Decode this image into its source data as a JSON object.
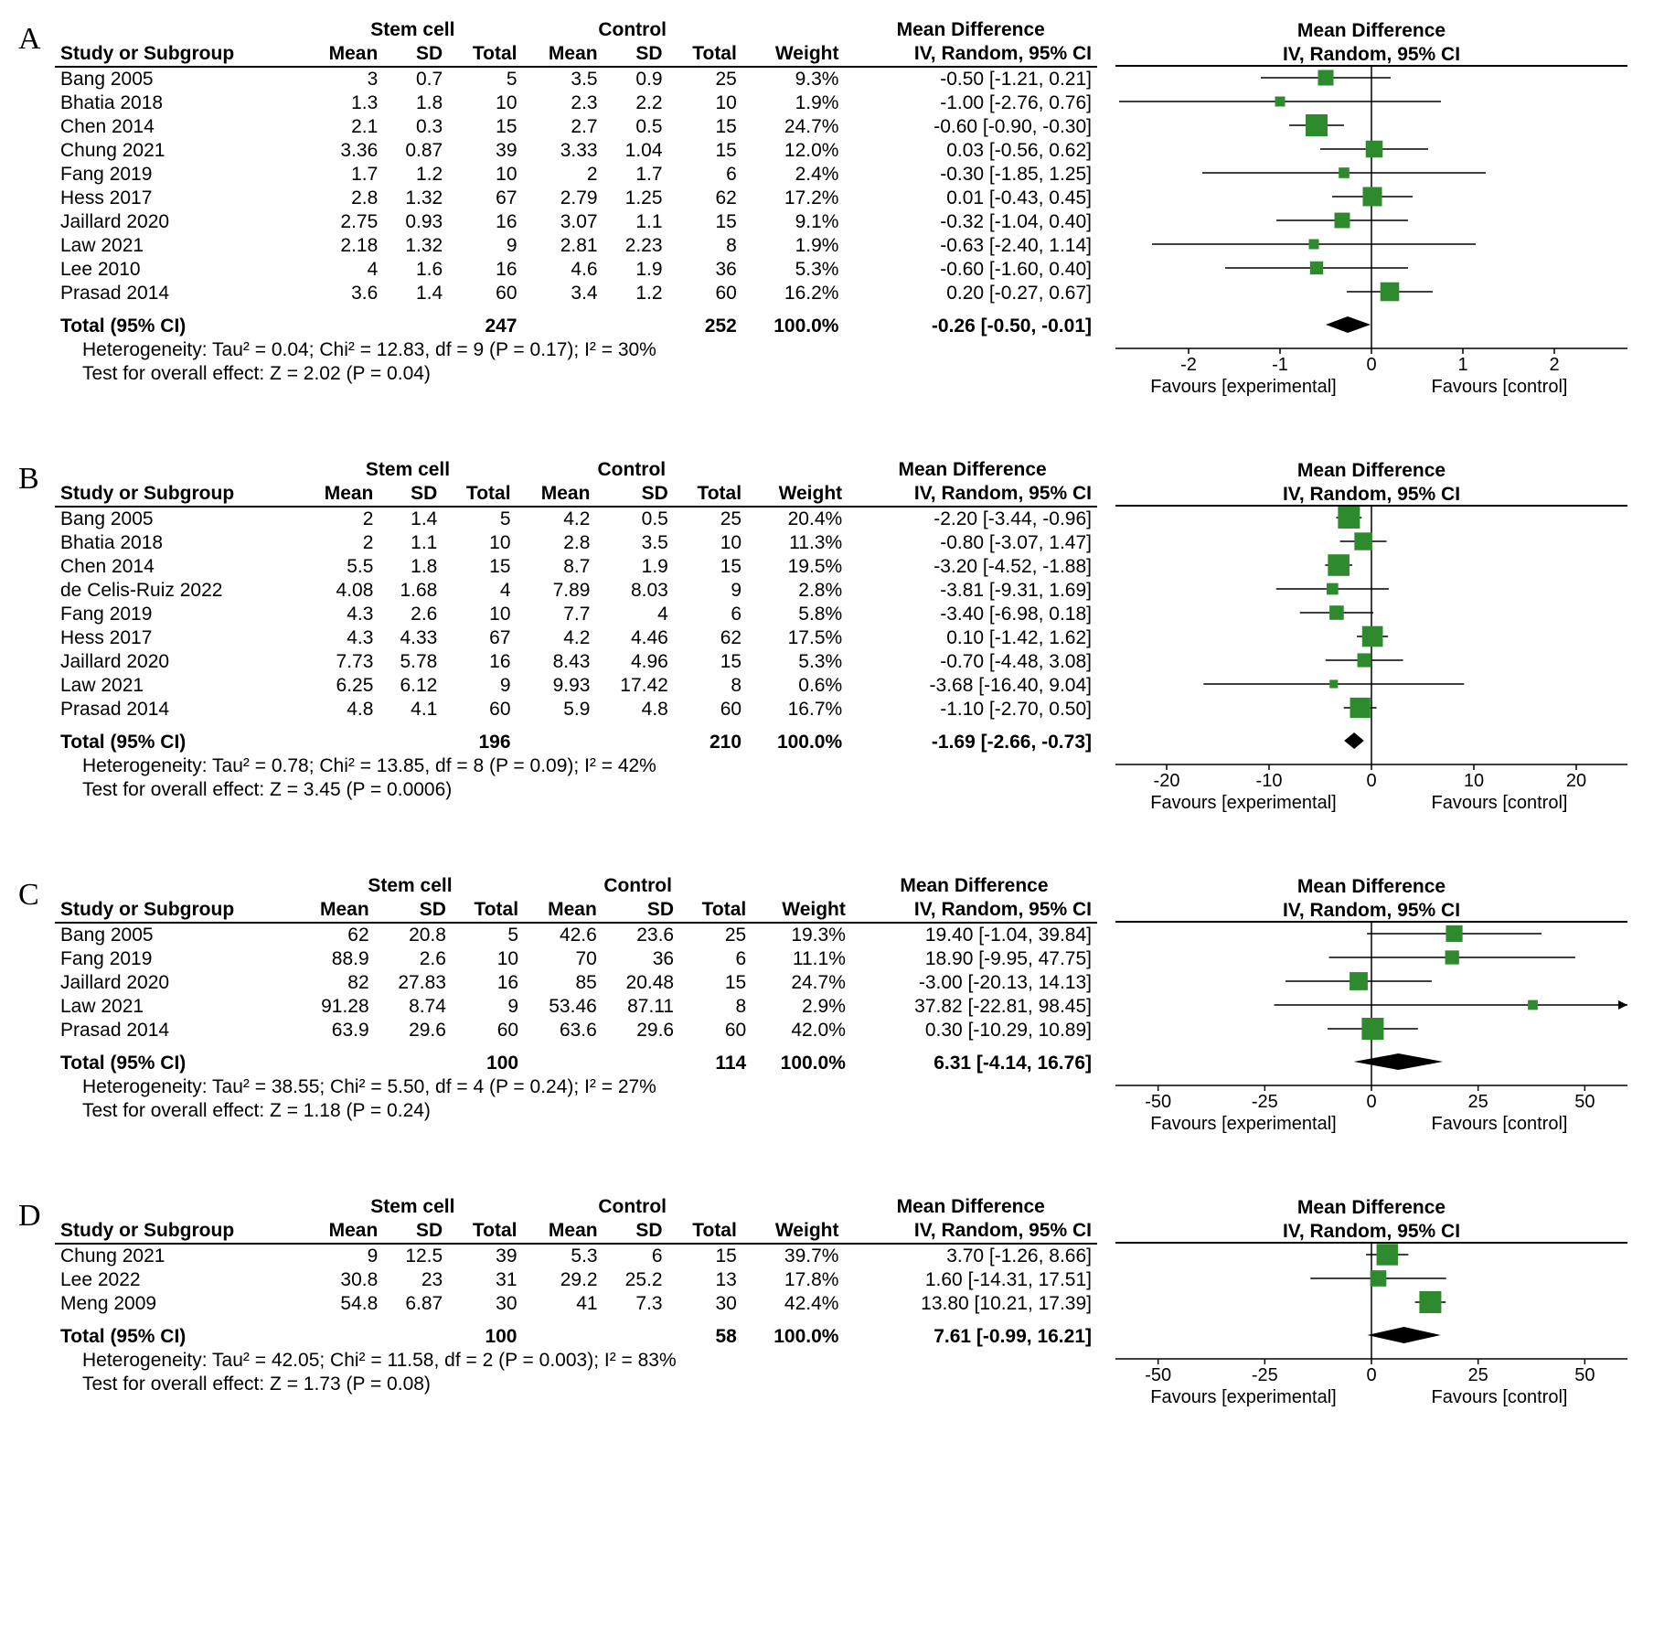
{
  "columns_group": [
    "",
    "Stem cell",
    "Control",
    "",
    "Mean Difference"
  ],
  "columns": [
    "Study or Subgroup",
    "Mean",
    "SD",
    "Total",
    "Mean",
    "SD",
    "Total",
    "Weight",
    "IV, Random, 95% CI"
  ],
  "plot_header1": "Mean Difference",
  "plot_header2": "IV, Random, 95% CI",
  "fav_left": "Favours [experimental]",
  "fav_right": "Favours [control]",
  "marker_color": "#2d8a2d",
  "panels": [
    {
      "letter": "A",
      "xmin": -2.8,
      "xmax": 2.8,
      "ticks": [
        -2,
        -1,
        0,
        1,
        2
      ],
      "rows": [
        {
          "s": "Bang 2005",
          "m1": "3",
          "sd1": "0.7",
          "n1": "5",
          "m2": "3.5",
          "sd2": "0.9",
          "n2": "25",
          "w": "9.3%",
          "md": "-0.50 [-1.21, 0.21]",
          "pt": -0.5,
          "lo": -1.21,
          "hi": 0.21,
          "wt": 9.3
        },
        {
          "s": "Bhatia 2018",
          "m1": "1.3",
          "sd1": "1.8",
          "n1": "10",
          "m2": "2.3",
          "sd2": "2.2",
          "n2": "10",
          "w": "1.9%",
          "md": "-1.00 [-2.76, 0.76]",
          "pt": -1.0,
          "lo": -2.76,
          "hi": 0.76,
          "wt": 1.9
        },
        {
          "s": "Chen 2014",
          "m1": "2.1",
          "sd1": "0.3",
          "n1": "15",
          "m2": "2.7",
          "sd2": "0.5",
          "n2": "15",
          "w": "24.7%",
          "md": "-0.60 [-0.90, -0.30]",
          "pt": -0.6,
          "lo": -0.9,
          "hi": -0.3,
          "wt": 24.7
        },
        {
          "s": "Chung 2021",
          "m1": "3.36",
          "sd1": "0.87",
          "n1": "39",
          "m2": "3.33",
          "sd2": "1.04",
          "n2": "15",
          "w": "12.0%",
          "md": "0.03 [-0.56, 0.62]",
          "pt": 0.03,
          "lo": -0.56,
          "hi": 0.62,
          "wt": 12.0
        },
        {
          "s": "Fang 2019",
          "m1": "1.7",
          "sd1": "1.2",
          "n1": "10",
          "m2": "2",
          "sd2": "1.7",
          "n2": "6",
          "w": "2.4%",
          "md": "-0.30 [-1.85, 1.25]",
          "pt": -0.3,
          "lo": -1.85,
          "hi": 1.25,
          "wt": 2.4
        },
        {
          "s": "Hess 2017",
          "m1": "2.8",
          "sd1": "1.32",
          "n1": "67",
          "m2": "2.79",
          "sd2": "1.25",
          "n2": "62",
          "w": "17.2%",
          "md": "0.01 [-0.43, 0.45]",
          "pt": 0.01,
          "lo": -0.43,
          "hi": 0.45,
          "wt": 17.2
        },
        {
          "s": "Jaillard 2020",
          "m1": "2.75",
          "sd1": "0.93",
          "n1": "16",
          "m2": "3.07",
          "sd2": "1.1",
          "n2": "15",
          "w": "9.1%",
          "md": "-0.32 [-1.04, 0.40]",
          "pt": -0.32,
          "lo": -1.04,
          "hi": 0.4,
          "wt": 9.1
        },
        {
          "s": "Law 2021",
          "m1": "2.18",
          "sd1": "1.32",
          "n1": "9",
          "m2": "2.81",
          "sd2": "2.23",
          "n2": "8",
          "w": "1.9%",
          "md": "-0.63 [-2.40, 1.14]",
          "pt": -0.63,
          "lo": -2.4,
          "hi": 1.14,
          "wt": 1.9
        },
        {
          "s": "Lee 2010",
          "m1": "4",
          "sd1": "1.6",
          "n1": "16",
          "m2": "4.6",
          "sd2": "1.9",
          "n2": "36",
          "w": "5.3%",
          "md": "-0.60 [-1.60, 0.40]",
          "pt": -0.6,
          "lo": -1.6,
          "hi": 0.4,
          "wt": 5.3
        },
        {
          "s": "Prasad 2014",
          "m1": "3.6",
          "sd1": "1.4",
          "n1": "60",
          "m2": "3.4",
          "sd2": "1.2",
          "n2": "60",
          "w": "16.2%",
          "md": "0.20 [-0.27, 0.67]",
          "pt": 0.2,
          "lo": -0.27,
          "hi": 0.67,
          "wt": 16.2
        }
      ],
      "total": {
        "n1": "247",
        "n2": "252",
        "w": "100.0%",
        "md": "-0.26 [-0.50, -0.01]",
        "pt": -0.26,
        "lo": -0.5,
        "hi": -0.01
      },
      "het": "Heterogeneity: Tau² = 0.04; Chi² = 12.83, df = 9 (P = 0.17); I² = 30%",
      "eff": "Test for overall effect: Z = 2.02 (P = 0.04)"
    },
    {
      "letter": "B",
      "xmin": -25,
      "xmax": 25,
      "ticks": [
        -20,
        -10,
        0,
        10,
        20
      ],
      "rows": [
        {
          "s": "Bang 2005",
          "m1": "2",
          "sd1": "1.4",
          "n1": "5",
          "m2": "4.2",
          "sd2": "0.5",
          "n2": "25",
          "w": "20.4%",
          "md": "-2.20 [-3.44, -0.96]",
          "pt": -2.2,
          "lo": -3.44,
          "hi": -0.96,
          "wt": 20.4
        },
        {
          "s": "Bhatia 2018",
          "m1": "2",
          "sd1": "1.1",
          "n1": "10",
          "m2": "2.8",
          "sd2": "3.5",
          "n2": "10",
          "w": "11.3%",
          "md": "-0.80 [-3.07, 1.47]",
          "pt": -0.8,
          "lo": -3.07,
          "hi": 1.47,
          "wt": 11.3
        },
        {
          "s": "Chen 2014",
          "m1": "5.5",
          "sd1": "1.8",
          "n1": "15",
          "m2": "8.7",
          "sd2": "1.9",
          "n2": "15",
          "w": "19.5%",
          "md": "-3.20 [-4.52, -1.88]",
          "pt": -3.2,
          "lo": -4.52,
          "hi": -1.88,
          "wt": 19.5
        },
        {
          "s": "de Celis-Ruiz 2022",
          "m1": "4.08",
          "sd1": "1.68",
          "n1": "4",
          "m2": "7.89",
          "sd2": "8.03",
          "n2": "9",
          "w": "2.8%",
          "md": "-3.81 [-9.31, 1.69]",
          "pt": -3.81,
          "lo": -9.31,
          "hi": 1.69,
          "wt": 2.8
        },
        {
          "s": "Fang 2019",
          "m1": "4.3",
          "sd1": "2.6",
          "n1": "10",
          "m2": "7.7",
          "sd2": "4",
          "n2": "6",
          "w": "5.8%",
          "md": "-3.40 [-6.98, 0.18]",
          "pt": -3.4,
          "lo": -6.98,
          "hi": 0.18,
          "wt": 5.8
        },
        {
          "s": "Hess 2017",
          "m1": "4.3",
          "sd1": "4.33",
          "n1": "67",
          "m2": "4.2",
          "sd2": "4.46",
          "n2": "62",
          "w": "17.5%",
          "md": "0.10 [-1.42, 1.62]",
          "pt": 0.1,
          "lo": -1.42,
          "hi": 1.62,
          "wt": 17.5
        },
        {
          "s": "Jaillard 2020",
          "m1": "7.73",
          "sd1": "5.78",
          "n1": "16",
          "m2": "8.43",
          "sd2": "4.96",
          "n2": "15",
          "w": "5.3%",
          "md": "-0.70 [-4.48, 3.08]",
          "pt": -0.7,
          "lo": -4.48,
          "hi": 3.08,
          "wt": 5.3
        },
        {
          "s": "Law 2021",
          "m1": "6.25",
          "sd1": "6.12",
          "n1": "9",
          "m2": "9.93",
          "sd2": "17.42",
          "n2": "8",
          "w": "0.6%",
          "md": "-3.68 [-16.40, 9.04]",
          "pt": -3.68,
          "lo": -16.4,
          "hi": 9.04,
          "wt": 0.6
        },
        {
          "s": "Prasad 2014",
          "m1": "4.8",
          "sd1": "4.1",
          "n1": "60",
          "m2": "5.9",
          "sd2": "4.8",
          "n2": "60",
          "w": "16.7%",
          "md": "-1.10 [-2.70, 0.50]",
          "pt": -1.1,
          "lo": -2.7,
          "hi": 0.5,
          "wt": 16.7
        }
      ],
      "total": {
        "n1": "196",
        "n2": "210",
        "w": "100.0%",
        "md": "-1.69 [-2.66, -0.73]",
        "pt": -1.69,
        "lo": -2.66,
        "hi": -0.73
      },
      "het": "Heterogeneity: Tau² = 0.78; Chi² = 13.85, df = 8 (P = 0.09); I² = 42%",
      "eff": "Test for overall effect: Z = 3.45 (P = 0.0006)"
    },
    {
      "letter": "C",
      "xmin": -60,
      "xmax": 60,
      "ticks": [
        -50,
        -25,
        0,
        25,
        50
      ],
      "rows": [
        {
          "s": "Bang 2005",
          "m1": "62",
          "sd1": "20.8",
          "n1": "5",
          "m2": "42.6",
          "sd2": "23.6",
          "n2": "25",
          "w": "19.3%",
          "md": "19.40 [-1.04, 39.84]",
          "pt": 19.4,
          "lo": -1.04,
          "hi": 39.84,
          "wt": 19.3
        },
        {
          "s": "Fang 2019",
          "m1": "88.9",
          "sd1": "2.6",
          "n1": "10",
          "m2": "70",
          "sd2": "36",
          "n2": "6",
          "w": "11.1%",
          "md": "18.90 [-9.95, 47.75]",
          "pt": 18.9,
          "lo": -9.95,
          "hi": 47.75,
          "wt": 11.1
        },
        {
          "s": "Jaillard 2020",
          "m1": "82",
          "sd1": "27.83",
          "n1": "16",
          "m2": "85",
          "sd2": "20.48",
          "n2": "15",
          "w": "24.7%",
          "md": "-3.00 [-20.13, 14.13]",
          "pt": -3.0,
          "lo": -20.13,
          "hi": 14.13,
          "wt": 24.7
        },
        {
          "s": "Law 2021",
          "m1": "91.28",
          "sd1": "8.74",
          "n1": "9",
          "m2": "53.46",
          "sd2": "87.11",
          "n2": "8",
          "w": "2.9%",
          "md": "37.82 [-22.81, 98.45]",
          "pt": 37.82,
          "lo": -22.81,
          "hi": 98.45,
          "wt": 2.9,
          "arrowR": true
        },
        {
          "s": "Prasad 2014",
          "m1": "63.9",
          "sd1": "29.6",
          "n1": "60",
          "m2": "63.6",
          "sd2": "29.6",
          "n2": "60",
          "w": "42.0%",
          "md": "0.30 [-10.29, 10.89]",
          "pt": 0.3,
          "lo": -10.29,
          "hi": 10.89,
          "wt": 42.0
        }
      ],
      "total": {
        "n1": "100",
        "n2": "114",
        "w": "100.0%",
        "md": "6.31 [-4.14, 16.76]",
        "pt": 6.31,
        "lo": -4.14,
        "hi": 16.76
      },
      "het": "Heterogeneity: Tau² = 38.55; Chi² = 5.50, df = 4 (P = 0.24); I² = 27%",
      "eff": "Test for overall effect: Z = 1.18 (P = 0.24)"
    },
    {
      "letter": "D",
      "xmin": -60,
      "xmax": 60,
      "ticks": [
        -50,
        -25,
        0,
        25,
        50
      ],
      "rows": [
        {
          "s": "Chung 2021",
          "m1": "9",
          "sd1": "12.5",
          "n1": "39",
          "m2": "5.3",
          "sd2": "6",
          "n2": "15",
          "w": "39.7%",
          "md": "3.70 [-1.26, 8.66]",
          "pt": 3.7,
          "lo": -1.26,
          "hi": 8.66,
          "wt": 39.7
        },
        {
          "s": "Lee 2022",
          "m1": "30.8",
          "sd1": "23",
          "n1": "31",
          "m2": "29.2",
          "sd2": "25.2",
          "n2": "13",
          "w": "17.8%",
          "md": "1.60 [-14.31, 17.51]",
          "pt": 1.6,
          "lo": -14.31,
          "hi": 17.51,
          "wt": 17.8
        },
        {
          "s": "Meng 2009",
          "m1": "54.8",
          "sd1": "6.87",
          "n1": "30",
          "m2": "41",
          "sd2": "7.3",
          "n2": "30",
          "w": "42.4%",
          "md": "13.80 [10.21, 17.39]",
          "pt": 13.8,
          "lo": 10.21,
          "hi": 17.39,
          "wt": 42.4
        }
      ],
      "total": {
        "n1": "100",
        "n2": "58",
        "w": "100.0%",
        "md": "7.61 [-0.99, 16.21]",
        "pt": 7.61,
        "lo": -0.99,
        "hi": 16.21
      },
      "het": "Heterogeneity: Tau² = 42.05; Chi² = 11.58, df = 2 (P = 0.003); I² = 83%",
      "eff": "Test for overall effect: Z = 1.73 (P = 0.08)"
    }
  ]
}
